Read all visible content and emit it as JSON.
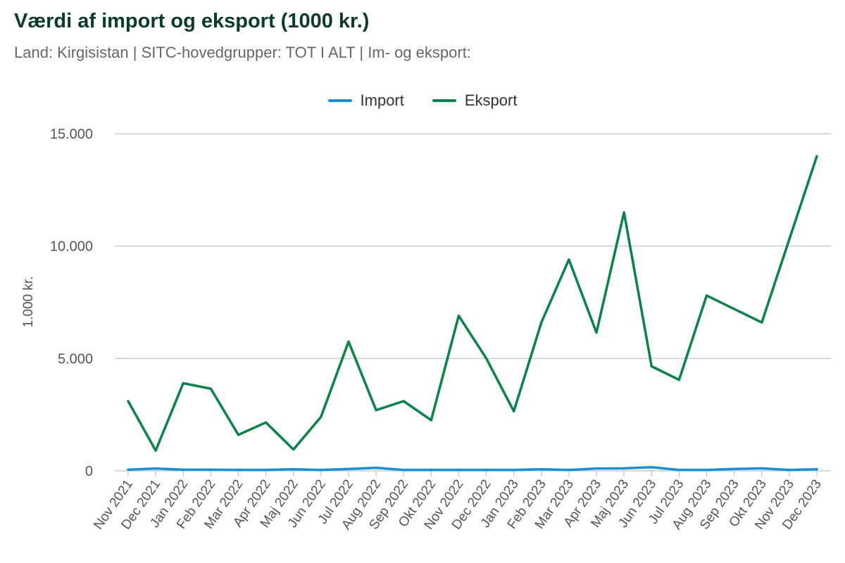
{
  "title": "Værdi af import og eksport (1000 kr.)",
  "subtitle": "Land: Kirgisistan | SITC-hovedgrupper: TOT I ALT | Im- og eksport:",
  "legend": [
    {
      "label": "Import",
      "color": "#1a8fd1"
    },
    {
      "label": "Eksport",
      "color": "#0b8248"
    }
  ],
  "chart_data": {
    "type": "line",
    "ylabel": "1.000 kr.",
    "xlabel": "",
    "ylim": [
      0,
      15000
    ],
    "yticks": [
      "0",
      "5.000",
      "10.000",
      "15.000"
    ],
    "grid": true,
    "legend_position": "top-center",
    "categories": [
      "Nov 2021",
      "Dec 2021",
      "Jan 2022",
      "Feb 2022",
      "Mar 2022",
      "Apr 2022",
      "Maj 2022",
      "Jun 2022",
      "Jul 2022",
      "Aug 2022",
      "Sep 2022",
      "Okt 2022",
      "Nov 2022",
      "Dec 2022",
      "Jan 2023",
      "Feb 2023",
      "Mar 2023",
      "Apr 2023",
      "Maj 2023",
      "Jun 2023",
      "Jul 2023",
      "Aug 2023",
      "Sep 2023",
      "Okt 2023",
      "Nov 2023",
      "Dec 2023"
    ],
    "series": [
      {
        "name": "Import",
        "color": "#1a8fd1",
        "values": [
          50,
          100,
          50,
          50,
          40,
          40,
          70,
          40,
          80,
          130,
          40,
          40,
          40,
          40,
          40,
          70,
          40,
          100,
          110,
          160,
          40,
          40,
          80,
          110,
          40,
          70
        ]
      },
      {
        "name": "Eksport",
        "color": "#0b8248",
        "values": [
          3100,
          900,
          3900,
          3650,
          1600,
          2150,
          950,
          2400,
          5750,
          2700,
          3100,
          2250,
          6900,
          5000,
          2650,
          6600,
          9400,
          6150,
          11500,
          4650,
          4050,
          7800,
          7200,
          6600,
          10300,
          14000
        ]
      }
    ]
  }
}
